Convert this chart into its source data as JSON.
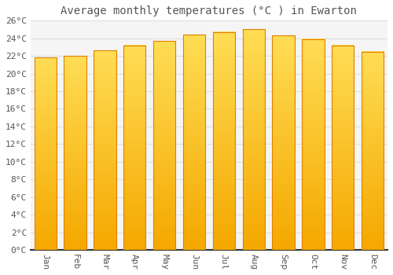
{
  "title": "Average monthly temperatures (°C ) in Ewarton",
  "months": [
    "Jan",
    "Feb",
    "Mar",
    "Apr",
    "May",
    "Jun",
    "Jul",
    "Aug",
    "Sep",
    "Oct",
    "Nov",
    "Dec"
  ],
  "values": [
    21.8,
    22.0,
    22.6,
    23.2,
    23.7,
    24.4,
    24.7,
    25.0,
    24.3,
    23.9,
    23.2,
    22.5
  ],
  "bar_color": "#FFA500",
  "bar_color_light": "#FFD966",
  "bar_edge_color": "#E08000",
  "background_color": "#FFFFFF",
  "plot_bg_color": "#F5F5F5",
  "grid_color": "#DDDDDD",
  "text_color": "#555555",
  "spine_color": "#333333",
  "ylim_min": 0,
  "ylim_max": 26,
  "ytick_step": 2,
  "title_fontsize": 10,
  "tick_fontsize": 8
}
